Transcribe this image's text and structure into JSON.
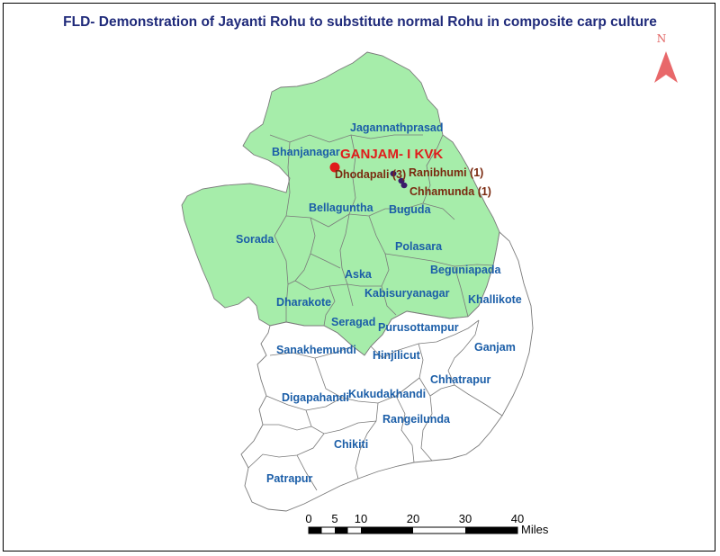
{
  "map": {
    "title": "FLD- Demonstration of Jayanti Rohu to substitute normal Rohu in composite carp culture",
    "colors": {
      "highlight_fill": "#a6edaa",
      "other_fill": "#ffffff",
      "boundary": "#7a7a7a",
      "block_label": "#1b5ea8",
      "village_label": "#7a2a10",
      "kvk": "#e01b1b",
      "village_dot": "#3a1a6a",
      "north_arrow": "#e8686a"
    },
    "blocks": [
      {
        "name": "Jagannathprasad",
        "highlighted": true
      },
      {
        "name": "Bhanjanagar",
        "highlighted": true
      },
      {
        "name": "Bellaguntha",
        "highlighted": true
      },
      {
        "name": "Buguda",
        "highlighted": true
      },
      {
        "name": "Sorada",
        "highlighted": true
      },
      {
        "name": "Polasara",
        "highlighted": true
      },
      {
        "name": "Beguniapada",
        "highlighted": true
      },
      {
        "name": "Aska",
        "highlighted": true
      },
      {
        "name": "Kabisuryanagar",
        "highlighted": true
      },
      {
        "name": "Dharakote",
        "highlighted": true
      },
      {
        "name": "Seragad",
        "highlighted": true
      },
      {
        "name": "Khallikote",
        "highlighted": false
      },
      {
        "name": "Purusottampur",
        "highlighted": false
      },
      {
        "name": "Ganjam",
        "highlighted": false
      },
      {
        "name": "Sanakhemundi",
        "highlighted": false
      },
      {
        "name": "Hinjilicut",
        "highlighted": false
      },
      {
        "name": "Chhatrapur",
        "highlighted": false
      },
      {
        "name": "Digapahandi",
        "highlighted": false
      },
      {
        "name": "Kukudakhandi",
        "highlighted": false
      },
      {
        "name": "Rangeilunda",
        "highlighted": false
      },
      {
        "name": "Chikiti",
        "highlighted": false
      },
      {
        "name": "Patrapur",
        "highlighted": false
      }
    ],
    "kvk": {
      "label": "GANJAM- I KVK",
      "icon": "red-dot-marker"
    },
    "villages": [
      {
        "label": "Dhodapali (3)"
      },
      {
        "label": "Ranibhumi (1)"
      },
      {
        "label": "Chhamunda (1)"
      }
    ],
    "north_arrow": {
      "label": "N",
      "icon": "north-arrow-icon"
    },
    "scale_bar": {
      "ticks": [
        "0",
        "5",
        "10",
        "20",
        "30",
        "40"
      ],
      "unit": "Miles"
    }
  }
}
